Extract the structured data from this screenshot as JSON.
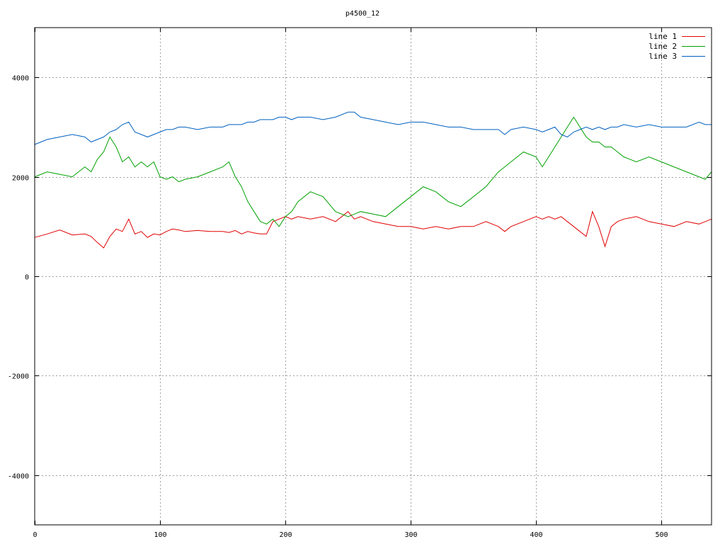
{
  "chart_data": {
    "type": "line",
    "title": "p4500_12",
    "xlabel": "",
    "ylabel": "",
    "xlim": [
      0,
      540
    ],
    "ylim": [
      -5000,
      5000
    ],
    "xticks": [
      0,
      100,
      200,
      300,
      400,
      500
    ],
    "yticks": [
      -4000,
      -2000,
      0,
      2000,
      4000
    ],
    "ytick_labels": [
      "-4000",
      "-2000",
      "0",
      "2000",
      "4000"
    ],
    "grid": true,
    "legend_position": "top-right",
    "x": [
      0,
      10,
      20,
      30,
      40,
      45,
      50,
      55,
      60,
      65,
      70,
      75,
      80,
      85,
      90,
      95,
      100,
      105,
      110,
      115,
      120,
      130,
      140,
      150,
      155,
      160,
      165,
      170,
      175,
      180,
      185,
      190,
      195,
      200,
      205,
      210,
      220,
      230,
      240,
      250,
      255,
      260,
      270,
      280,
      290,
      300,
      310,
      320,
      330,
      340,
      350,
      360,
      370,
      375,
      380,
      390,
      400,
      405,
      410,
      415,
      420,
      425,
      430,
      435,
      440,
      445,
      450,
      455,
      460,
      465,
      470,
      480,
      490,
      500,
      510,
      520,
      530,
      535,
      540
    ],
    "series": [
      {
        "name": "line 1",
        "color": "#e00000",
        "values": [
          780,
          850,
          930,
          830,
          850,
          800,
          680,
          570,
          800,
          950,
          900,
          1150,
          850,
          900,
          780,
          850,
          830,
          900,
          950,
          930,
          900,
          920,
          900,
          900,
          880,
          920,
          850,
          900,
          870,
          850,
          850,
          1100,
          1150,
          1200,
          1150,
          1200,
          1150,
          1200,
          1100,
          1300,
          1150,
          1200,
          1100,
          1050,
          1000,
          1000,
          950,
          1000,
          950,
          1000,
          1000,
          1100,
          1000,
          900,
          1000,
          1100,
          1200,
          1150,
          1200,
          1150,
          1200,
          1100,
          1000,
          900,
          800,
          1300,
          1000,
          600,
          1000,
          1100,
          1150,
          1200,
          1100,
          1050,
          1000,
          1100,
          1050,
          1100,
          1150
        ]
      },
      {
        "name": "line 2",
        "color": "#00a000",
        "values": [
          2000,
          2100,
          2050,
          2000,
          2200,
          2100,
          2350,
          2500,
          2800,
          2600,
          2300,
          2400,
          2200,
          2300,
          2200,
          2300,
          2000,
          1950,
          2000,
          1900,
          1950,
          2000,
          2100,
          2200,
          2300,
          2000,
          1800,
          1500,
          1300,
          1100,
          1050,
          1150,
          1000,
          1200,
          1300,
          1500,
          1700,
          1600,
          1300,
          1200,
          1250,
          1300,
          1250,
          1200,
          1400,
          1600,
          1800,
          1700,
          1500,
          1400,
          1600,
          1800,
          2100,
          2200,
          2300,
          2500,
          2400,
          2200,
          2400,
          2600,
          2800,
          3000,
          3200,
          3000,
          2800,
          2700,
          2700,
          2600,
          2600,
          2500,
          2400,
          2300,
          2400,
          2300,
          2200,
          2100,
          2000,
          1950,
          2100
        ]
      },
      {
        "name": "line 3",
        "color": "#0060c0",
        "values": [
          2650,
          2750,
          2800,
          2850,
          2800,
          2700,
          2750,
          2800,
          2900,
          2950,
          3050,
          3100,
          2900,
          2850,
          2800,
          2850,
          2900,
          2950,
          2950,
          3000,
          3000,
          2950,
          3000,
          3000,
          3050,
          3050,
          3050,
          3100,
          3100,
          3150,
          3150,
          3150,
          3200,
          3200,
          3150,
          3200,
          3200,
          3150,
          3200,
          3300,
          3300,
          3200,
          3150,
          3100,
          3050,
          3100,
          3100,
          3050,
          3000,
          3000,
          2950,
          2950,
          2950,
          2850,
          2950,
          3000,
          2950,
          2900,
          2950,
          3000,
          2850,
          2800,
          2900,
          2950,
          3000,
          2950,
          3000,
          2950,
          3000,
          3000,
          3050,
          3000,
          3050,
          3000,
          3000,
          3000,
          3100,
          3050,
          3050
        ]
      }
    ]
  }
}
